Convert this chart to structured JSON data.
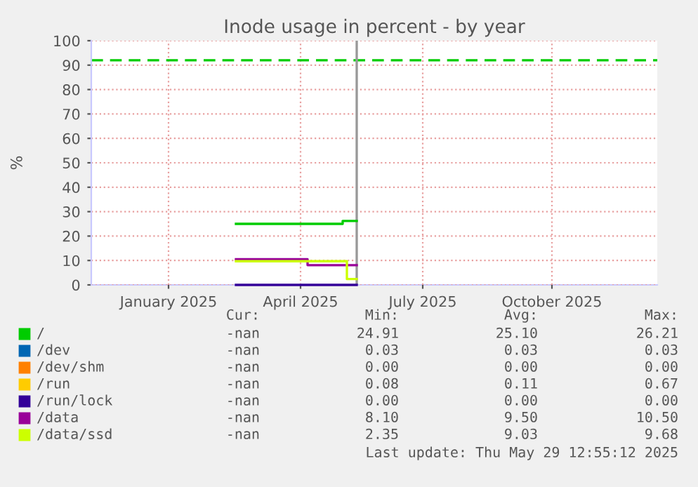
{
  "chart_data": {
    "type": "step",
    "title": "Inode usage in percent - by year",
    "ylabel": "%",
    "xlim": [
      "2024-11-21",
      "2025-12-29"
    ],
    "ylim": [
      0,
      100
    ],
    "yticks": [
      0,
      10,
      20,
      30,
      40,
      50,
      60,
      70,
      80,
      90,
      100
    ],
    "xticks": [
      {
        "value": "2025-01-15",
        "label": "January 2025"
      },
      {
        "value": "2025-04-19",
        "label": "April 2025"
      },
      {
        "value": "2025-07-15",
        "label": "July 2025"
      },
      {
        "value": "2025-10-15",
        "label": "October 2025"
      }
    ],
    "grid": true,
    "legend": "bottom",
    "line_style": "solid",
    "marker": "none",
    "series": [
      {
        "name": "/",
        "color": "#00cc00",
        "x": [
          "2025-03-04",
          "2025-05-19",
          "2025-05-29"
        ],
        "values": [
          25,
          26.2,
          26.2
        ]
      },
      {
        "name": "/dev",
        "color": "#0066b3"
      },
      {
        "name": "/dev/shm",
        "color": "#ff8000"
      },
      {
        "name": "/run",
        "color": "#ffcc00"
      },
      {
        "name": "/run/lock",
        "color": "#330099",
        "x": [
          "2025-03-04",
          "2025-05-29"
        ],
        "values": [
          0,
          0
        ]
      },
      {
        "name": "/data",
        "color": "#990099",
        "x": [
          "2025-03-04",
          "2025-04-24",
          "2025-05-29"
        ],
        "values": [
          10.5,
          8.1,
          8.1
        ]
      },
      {
        "name": "/data/ssd",
        "color": "#ccff00",
        "x": [
          "2025-03-04",
          "2025-05-22",
          "2025-05-29"
        ],
        "values": [
          9.7,
          2.4,
          2.4
        ]
      }
    ],
    "ref_lines": [
      {
        "axis": "y",
        "value": 92,
        "color": "#00cc00",
        "line_style": "dashed"
      },
      {
        "axis": "x",
        "value": "2025-05-29",
        "color": "#999999",
        "line_style": "solid"
      }
    ],
    "annotations": [
      "Cur:",
      "Min:",
      "Avg:",
      "Max:",
      "-nan",
      "24.91",
      "25.10",
      "26.21",
      "-nan",
      "0.03",
      "0.03",
      "0.03",
      "-nan",
      "0.00",
      "0.00",
      "0.00",
      "-nan",
      "0.08",
      "0.11",
      "0.67",
      "-nan",
      "0.00",
      "0.00",
      "0.00",
      "-nan",
      "8.10",
      "9.50",
      "10.50",
      "-nan",
      "2.35",
      "9.03",
      "9.68",
      "Last update: Thu May 29 12:55:12 2025"
    ]
  }
}
